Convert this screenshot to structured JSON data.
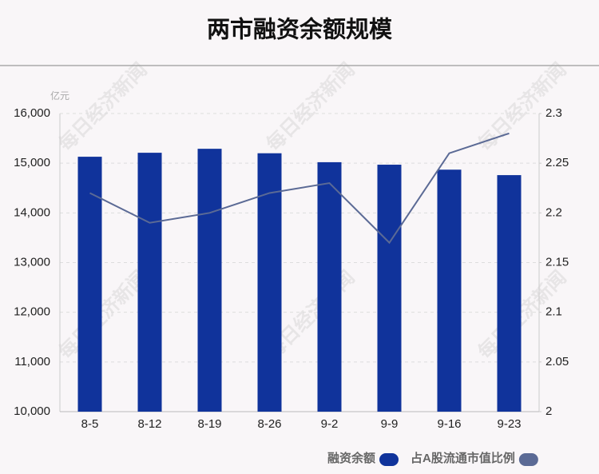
{
  "chart_data": {
    "type": "bar-line",
    "title": "两市融资余额规模",
    "y_unit": "亿元",
    "watermark": "每日经济新闻",
    "categories": [
      "8-5",
      "8-12",
      "8-19",
      "8-26",
      "9-2",
      "9-9",
      "9-16",
      "9-23"
    ],
    "series": [
      {
        "name": "融资余额",
        "type": "bar",
        "color": "#10339b",
        "values": [
          15130,
          15210,
          15290,
          15200,
          15020,
          14970,
          14870,
          14760
        ]
      },
      {
        "name": "占A股流通市值比例",
        "type": "line",
        "axis": "y2",
        "color": "#5b6a95",
        "values": [
          2.22,
          2.19,
          2.2,
          2.22,
          2.23,
          2.17,
          2.26,
          2.28
        ]
      }
    ],
    "ylim": [
      10000,
      16000
    ],
    "yticks": [
      {
        "value": 10000,
        "label": "10,000"
      },
      {
        "value": 11000,
        "label": "11,000"
      },
      {
        "value": 12000,
        "label": "12,000"
      },
      {
        "value": 13000,
        "label": "13,000"
      },
      {
        "value": 14000,
        "label": "14,000"
      },
      {
        "value": 15000,
        "label": "15,000"
      },
      {
        "value": 16000,
        "label": "16,000"
      }
    ],
    "y2lim": [
      2,
      2.3
    ],
    "y2ticks": [
      2,
      2.05,
      2.1,
      2.15,
      2.2,
      2.25,
      2.3
    ],
    "grid": true
  }
}
